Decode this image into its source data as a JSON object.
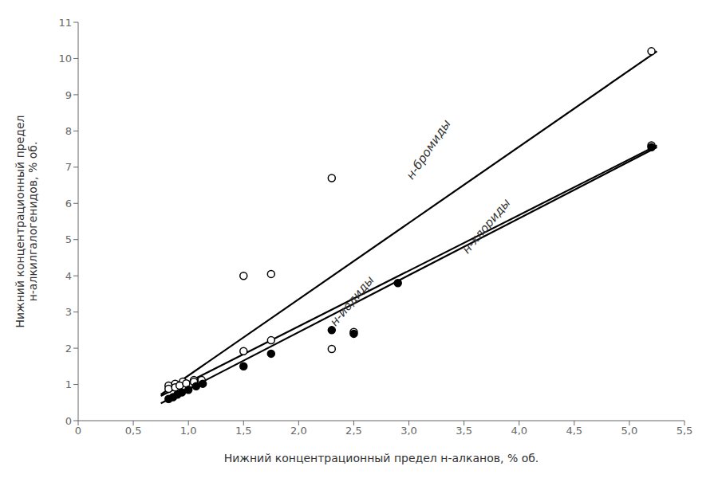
{
  "chart_data": {
    "type": "scatter",
    "xlabel": "Нижний концентрационный предел н-алканов, % об.",
    "ylabel": "Нижний концентрационный предел\nн-алкилгалогенидов, % об.",
    "xlim": [
      0,
      5.5
    ],
    "ylim": [
      0,
      11
    ],
    "xticks": [
      0,
      {
        "value": 0.5,
        "label": "0,5"
      },
      {
        "value": 1.0,
        "label": "1,0"
      },
      {
        "value": 1.5,
        "label": "1,5"
      },
      {
        "value": 2.0,
        "label": "2,0"
      },
      {
        "value": 2.5,
        "label": "2,5"
      },
      {
        "value": 3.0,
        "label": "3,0"
      },
      {
        "value": 3.5,
        "label": "3,5"
      },
      {
        "value": 4.0,
        "label": "4,0"
      },
      {
        "value": 4.5,
        "label": "4,5"
      },
      {
        "value": 5.0,
        "label": "5,0"
      },
      {
        "value": 5.5,
        "label": "5,5"
      }
    ],
    "yticks": [
      0,
      1,
      2,
      3,
      4,
      5,
      6,
      7,
      8,
      9,
      10,
      11
    ],
    "grid": false,
    "series": [
      {
        "type": "line",
        "color": "#000000",
        "x": [
          0.75,
          5.25
        ],
        "values": [
          0.72,
          10.2
        ]
      },
      {
        "type": "scatter",
        "marker": "open_circle",
        "color": "#000000",
        "x": [
          0.82,
          0.88,
          0.95,
          1.05,
          1.5,
          1.75,
          2.3,
          5.2
        ],
        "values": [
          0.97,
          1.02,
          1.08,
          1.12,
          4.0,
          4.05,
          6.7,
          10.2
        ]
      },
      {
        "type": "line",
        "color": "#000000",
        "x": [
          0.75,
          5.25
        ],
        "values": [
          0.68,
          7.6
        ]
      },
      {
        "type": "scatter",
        "marker": "open_circle",
        "color": "#000000",
        "x": [
          0.82,
          0.88,
          0.92,
          0.98,
          1.05,
          1.12,
          1.5,
          1.75,
          2.3,
          2.5,
          5.2
        ],
        "values": [
          0.88,
          0.92,
          0.97,
          1.03,
          1.07,
          1.12,
          1.92,
          2.22,
          1.98,
          2.45,
          7.6
        ]
      },
      {
        "type": "line",
        "color": "#000000",
        "x": [
          0.75,
          5.25
        ],
        "values": [
          0.48,
          7.55
        ]
      },
      {
        "type": "scatter",
        "marker": "circle",
        "color": "#000000",
        "x": [
          0.82,
          0.86,
          0.9,
          0.94,
          1.0,
          1.07,
          1.13,
          1.5,
          1.75,
          2.3,
          2.5,
          2.9,
          5.2
        ],
        "values": [
          0.6,
          0.65,
          0.72,
          0.78,
          0.85,
          0.95,
          1.02,
          1.5,
          1.85,
          2.5,
          2.4,
          3.8,
          7.55
        ]
      }
    ],
    "annotations": [
      {
        "text": "н-бромиды",
        "x": 3.05,
        "y": 6.6
      },
      {
        "text": "н-хлориды",
        "x": 3.55,
        "y": 4.55
      },
      {
        "text": "н-иодиды",
        "x": 2.35,
        "y": 2.55
      }
    ]
  }
}
